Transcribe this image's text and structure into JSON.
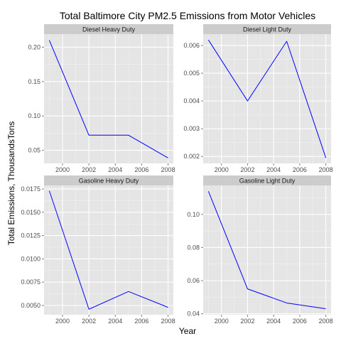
{
  "chart_data": {
    "type": "line",
    "title": "Total Baltimore City PM2.5 Emissions from Motor Vehicles",
    "xlabel": "Year",
    "ylabel": "Total Emissions, ThousandsTons",
    "x": [
      1999,
      2002,
      2005,
      2008
    ],
    "xlim": [
      1998.6,
      2008.4
    ],
    "x_ticks": [
      2000,
      2002,
      2004,
      2006,
      2008
    ],
    "grid": true,
    "line_color": "#0000ff",
    "panel_background": "#e5e5e5",
    "strip_background": "#cccccc",
    "facets": [
      {
        "label": "Diesel Heavy Duty",
        "values": [
          0.21,
          0.072,
          0.072,
          0.039
        ],
        "ylim": [
          0.031,
          0.219
        ],
        "y_ticks": [
          0.05,
          0.1,
          0.15,
          0.2
        ],
        "y_tick_labels": [
          "0.05",
          "0.10",
          "0.15",
          "0.20"
        ]
      },
      {
        "label": "Diesel Light Duty",
        "values": [
          0.0062,
          0.004,
          0.00615,
          0.00195
        ],
        "ylim": [
          0.00175,
          0.00641
        ],
        "y_ticks": [
          0.002,
          0.003,
          0.004,
          0.005,
          0.006
        ],
        "y_tick_labels": [
          "0.002",
          "0.003",
          "0.004",
          "0.005",
          "0.006"
        ]
      },
      {
        "label": "Gasoline Heavy Duty",
        "values": [
          0.0173,
          0.0046,
          0.0065,
          0.0048
        ],
        "ylim": [
          0.00401,
          0.01788
        ],
        "y_ticks": [
          0.005,
          0.0075,
          0.01,
          0.0125,
          0.015,
          0.0175
        ],
        "y_tick_labels": [
          "0.0050",
          "0.0075",
          "0.0100",
          "0.0125",
          "0.0150",
          "0.0175"
        ]
      },
      {
        "label": "Gasoline Light Duty",
        "values": [
          0.114,
          0.055,
          0.0465,
          0.043
        ],
        "ylim": [
          0.0394,
          0.1175
        ],
        "y_ticks": [
          0.04,
          0.06,
          0.08,
          0.1
        ],
        "y_tick_labels": [
          "0.04",
          "0.06",
          "0.08",
          "0.10"
        ]
      }
    ]
  }
}
